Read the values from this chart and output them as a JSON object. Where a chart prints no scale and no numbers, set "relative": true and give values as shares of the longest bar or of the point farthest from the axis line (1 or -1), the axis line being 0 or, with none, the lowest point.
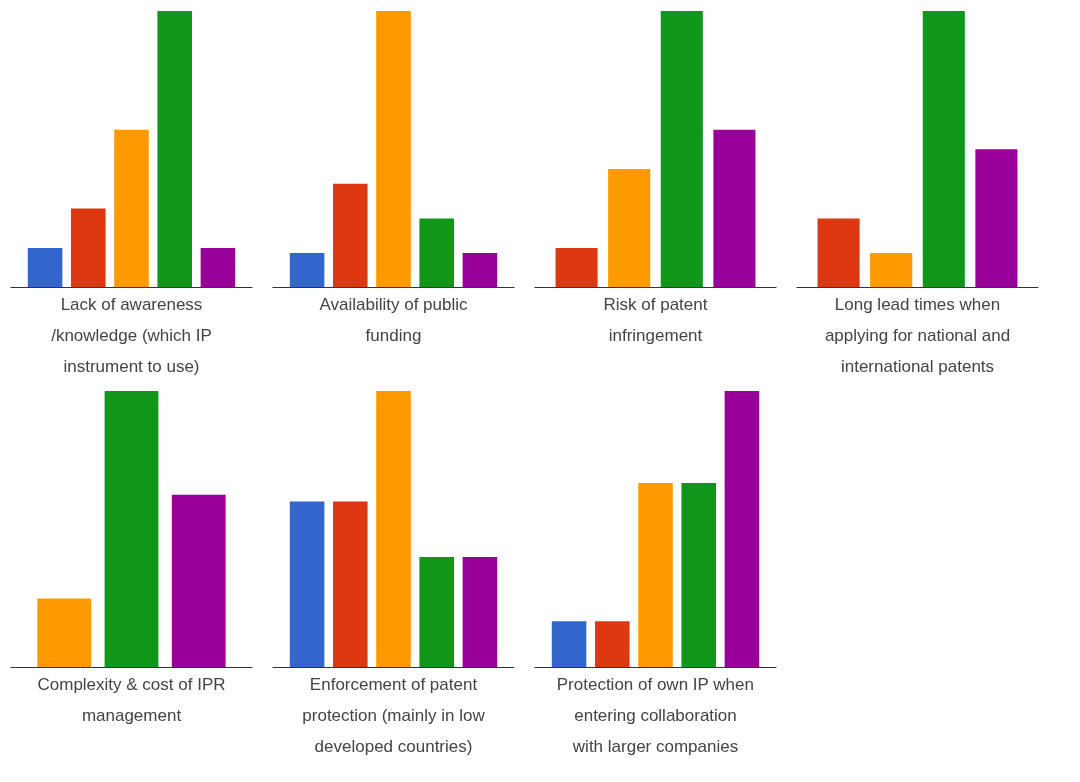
{
  "chart_data": [
    {
      "type": "bar",
      "title": "Lack of awareness /knowledge (which IP instrument to use)",
      "relative": true,
      "categories": [
        null,
        null,
        null,
        null,
        null
      ],
      "values": [
        0.143,
        0.286,
        0.571,
        1,
        0.143
      ],
      "colors": [
        "#3366cc",
        "#dc3912",
        "#ff9900",
        "#109618",
        "#990099"
      ]
    },
    {
      "type": "bar",
      "title": "Availability of public funding",
      "relative": true,
      "categories": [
        null,
        null,
        null,
        null,
        null
      ],
      "values": [
        0.125,
        0.375,
        1,
        0.25,
        0.125
      ],
      "colors": [
        "#3366cc",
        "#dc3912",
        "#ff9900",
        "#109618",
        "#990099"
      ]
    },
    {
      "type": "bar",
      "title": "Risk of patent infringement",
      "relative": true,
      "categories": [
        null,
        null,
        null,
        null
      ],
      "values": [
        0.143,
        0.429,
        1,
        0.571
      ],
      "colors": [
        "#dc3912",
        "#ff9900",
        "#109618",
        "#990099"
      ]
    },
    {
      "type": "bar",
      "title": "Long lead times when applying for national and international patents",
      "relative": true,
      "categories": [
        null,
        null,
        null,
        null
      ],
      "values": [
        0.25,
        0.125,
        1,
        0.5
      ],
      "colors": [
        "#dc3912",
        "#ff9900",
        "#109618",
        "#990099"
      ]
    },
    {
      "type": "bar",
      "title": "Complexity & cost of IPR management",
      "relative": true,
      "categories": [
        null,
        null,
        null
      ],
      "values": [
        0.25,
        1,
        0.625
      ],
      "colors": [
        "#ff9900",
        "#109618",
        "#990099"
      ]
    },
    {
      "type": "bar",
      "title": "Enforcement of patent protection (mainly in low developed countries)",
      "relative": true,
      "categories": [
        null,
        null,
        null,
        null,
        null
      ],
      "values": [
        0.6,
        0.6,
        1,
        0.4,
        0.4
      ],
      "colors": [
        "#3366cc",
        "#dc3912",
        "#ff9900",
        "#109618",
        "#990099"
      ]
    },
    {
      "type": "bar",
      "title": "Protection of own IP when entering collaboration with larger companies",
      "relative": true,
      "categories": [
        null,
        null,
        null,
        null,
        null
      ],
      "values": [
        0.167,
        0.167,
        0.667,
        0.667,
        1
      ],
      "colors": [
        "#3366cc",
        "#dc3912",
        "#ff9900",
        "#109618",
        "#990099"
      ]
    }
  ]
}
